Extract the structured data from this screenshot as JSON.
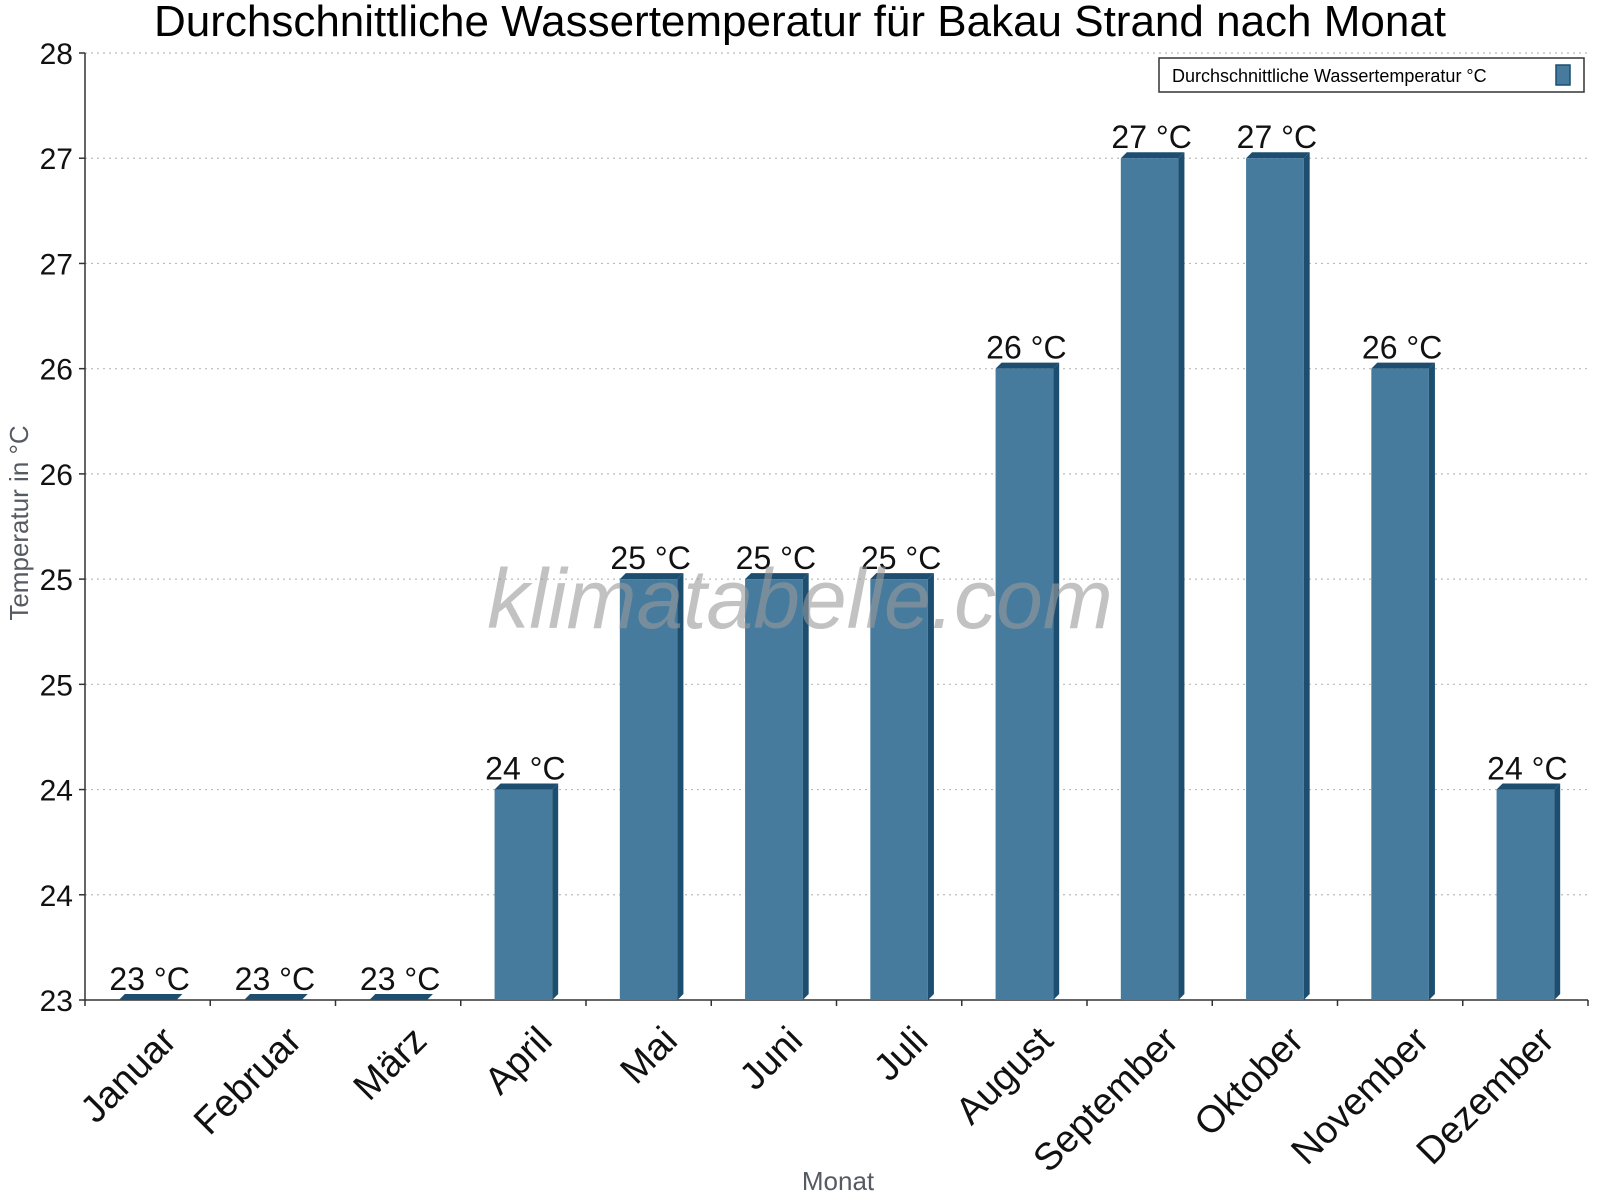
{
  "chart_data": {
    "type": "bar",
    "title": "Durchschnittliche Wassertemperatur für Bakau Strand nach Monat",
    "xlabel": "Monat",
    "ylabel": "Temperatur in °C",
    "categories": [
      "Januar",
      "Februar",
      "März",
      "April",
      "Mai",
      "Juni",
      "Juli",
      "August",
      "September",
      "Oktober",
      "November",
      "Dezember"
    ],
    "series": [
      {
        "name": "Durchschnittliche Wassertemperatur °C",
        "values": [
          23.0,
          23.0,
          23.0,
          24.0,
          25.0,
          25.0,
          25.0,
          26.0,
          27.0,
          27.0,
          26.0,
          24.0
        ],
        "data_labels": [
          "23 °C",
          "23 °C",
          "23 °C",
          "24 °C",
          "25 °C",
          "25 °C",
          "25 °C",
          "26 °C",
          "27 °C",
          "27 °C",
          "26 °C",
          "24 °C"
        ]
      }
    ],
    "ylim": [
      23,
      27.5
    ],
    "yticks": [
      23,
      23.5,
      24,
      24.5,
      25,
      25.5,
      26,
      26.5,
      27,
      27.5
    ],
    "ytick_labels": [
      "23",
      "24",
      "24",
      "25",
      "25",
      "26",
      "26",
      "27",
      "27",
      "28"
    ],
    "grid": true,
    "legend_position": "top-right",
    "colors": {
      "bar": "#467b9e",
      "bar_side": "#1d4e70",
      "bar_top": "#1d4e70",
      "grid": "#bbbbbb",
      "axis": "#333333"
    }
  },
  "watermark": "klimatabelle.com"
}
